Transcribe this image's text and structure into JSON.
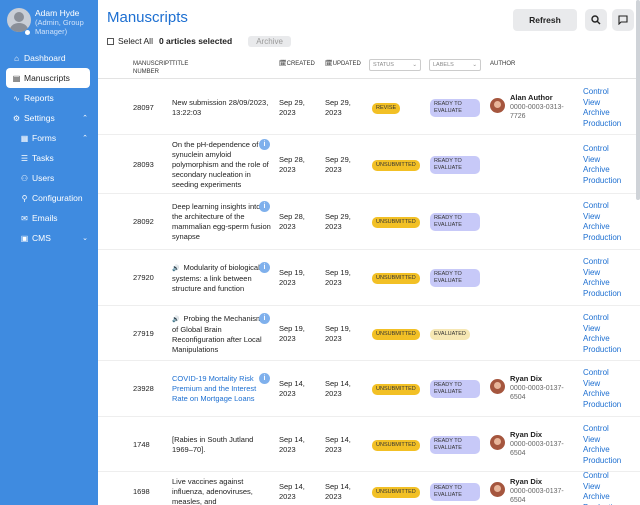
{
  "user": {
    "name": "Adam Hyde",
    "role": "(Admin, Group Manager)"
  },
  "sidebar": {
    "items": [
      {
        "label": "Dashboard",
        "icon": "home-icon",
        "glyph": "⌂"
      },
      {
        "label": "Manuscripts",
        "icon": "document-icon",
        "glyph": "▤",
        "active": true
      },
      {
        "label": "Reports",
        "icon": "activity-icon",
        "glyph": "∿"
      },
      {
        "label": "Settings",
        "icon": "gear-icon",
        "glyph": "⚙",
        "expand": "⌃"
      },
      {
        "label": "Forms",
        "icon": "forms-icon",
        "glyph": "▦",
        "expand": "⌃"
      },
      {
        "label": "Tasks",
        "icon": "list-icon",
        "glyph": "☰"
      },
      {
        "label": "Users",
        "icon": "users-icon",
        "glyph": "⚇"
      },
      {
        "label": "Configuration",
        "icon": "sliders-icon",
        "glyph": "⚲"
      },
      {
        "label": "Emails",
        "icon": "mail-icon",
        "glyph": "✉"
      },
      {
        "label": "CMS",
        "icon": "layout-icon",
        "glyph": "▣",
        "expand": "⌄"
      }
    ]
  },
  "page": {
    "title": "Manuscripts",
    "refresh_label": "Refresh",
    "select_all_label": "Select All",
    "selected_count": "0 articles selected",
    "archive_label": "Archive"
  },
  "columns": {
    "manuscript_number": "MANUSCRIPT NUMBER",
    "title": "TITLE",
    "created": "CREATED",
    "updated": "UPDATED",
    "status": "STATUS",
    "labels": "LABELS",
    "author": "AUTHOR"
  },
  "actions": [
    "Control",
    "View",
    "Archive",
    "Production"
  ],
  "rows": [
    {
      "id": "28097",
      "title": "New submission 28/09/2023, 13:22:03",
      "info": false,
      "link": false,
      "created": "Sep 29, 2023",
      "updated": "Sep 29, 2023",
      "status": "REVISE",
      "label": "READY TO EVALUATE",
      "author": "Alan Author",
      "author_id": "0000-0003-0313-7726"
    },
    {
      "id": "28093",
      "title": "On the pH-dependence of α-synuclein amyloid polymorphism and the role of secondary nucleation in seeding experiments",
      "info": true,
      "link": false,
      "created": "Sep 28, 2023",
      "updated": "Sep 29, 2023",
      "status": "UNSUBMITTED",
      "label": "READY TO EVALUATE",
      "author": "",
      "author_id": ""
    },
    {
      "id": "28092",
      "title": "Deep learning insights into the architecture of the mammalian egg-sperm fusion synapse",
      "info": true,
      "link": false,
      "created": "Sep 28, 2023",
      "updated": "Sep 29, 2023",
      "status": "UNSUBMITTED",
      "label": "READY TO EVALUATE",
      "author": "",
      "author_id": ""
    },
    {
      "id": "27920",
      "title": "Modularity of biological systems: a link between structure and function",
      "prefix": "🔊",
      "info": true,
      "link": false,
      "created": "Sep 19, 2023",
      "updated": "Sep 19, 2023",
      "status": "UNSUBMITTED",
      "label": "READY TO EVALUATE",
      "author": "",
      "author_id": ""
    },
    {
      "id": "27919",
      "title": "Probing the Mechanisms of Global Brain Reconfiguration after Local Manipulations",
      "prefix": "🔊",
      "info": true,
      "link": false,
      "created": "Sep 19, 2023",
      "updated": "Sep 19, 2023",
      "status": "UNSUBMITTED",
      "label": "EVALUATED",
      "author": "",
      "author_id": ""
    },
    {
      "id": "23928",
      "title": "COVID-19 Mortality Risk Premium and the Interest Rate on Mortgage Loans",
      "info": true,
      "link": true,
      "created": "Sep 14, 2023",
      "updated": "Sep 14, 2023",
      "status": "UNSUBMITTED",
      "label": "READY TO EVALUATE",
      "author": "Ryan Dix",
      "author_id": "0000-0003-0137-6504"
    },
    {
      "id": "1748",
      "title": "[Rabies in South Jutland 1969–70].",
      "info": false,
      "link": false,
      "created": "Sep 14, 2023",
      "updated": "Sep 14, 2023",
      "status": "UNSUBMITTED",
      "label": "READY TO EVALUATE",
      "author": "Ryan Dix",
      "author_id": "0000-0003-0137-6504"
    },
    {
      "id": "1698",
      "title": "Live vaccines against influenza, adenoviruses, measles, and",
      "info": false,
      "link": false,
      "created": "Sep 14, 2023",
      "updated": "Sep 14, 2023",
      "status": "UNSUBMITTED",
      "label": "READY TO EVALUATE",
      "author": "Ryan Dix",
      "author_id": "0000-0003-0137-6504"
    }
  ]
}
